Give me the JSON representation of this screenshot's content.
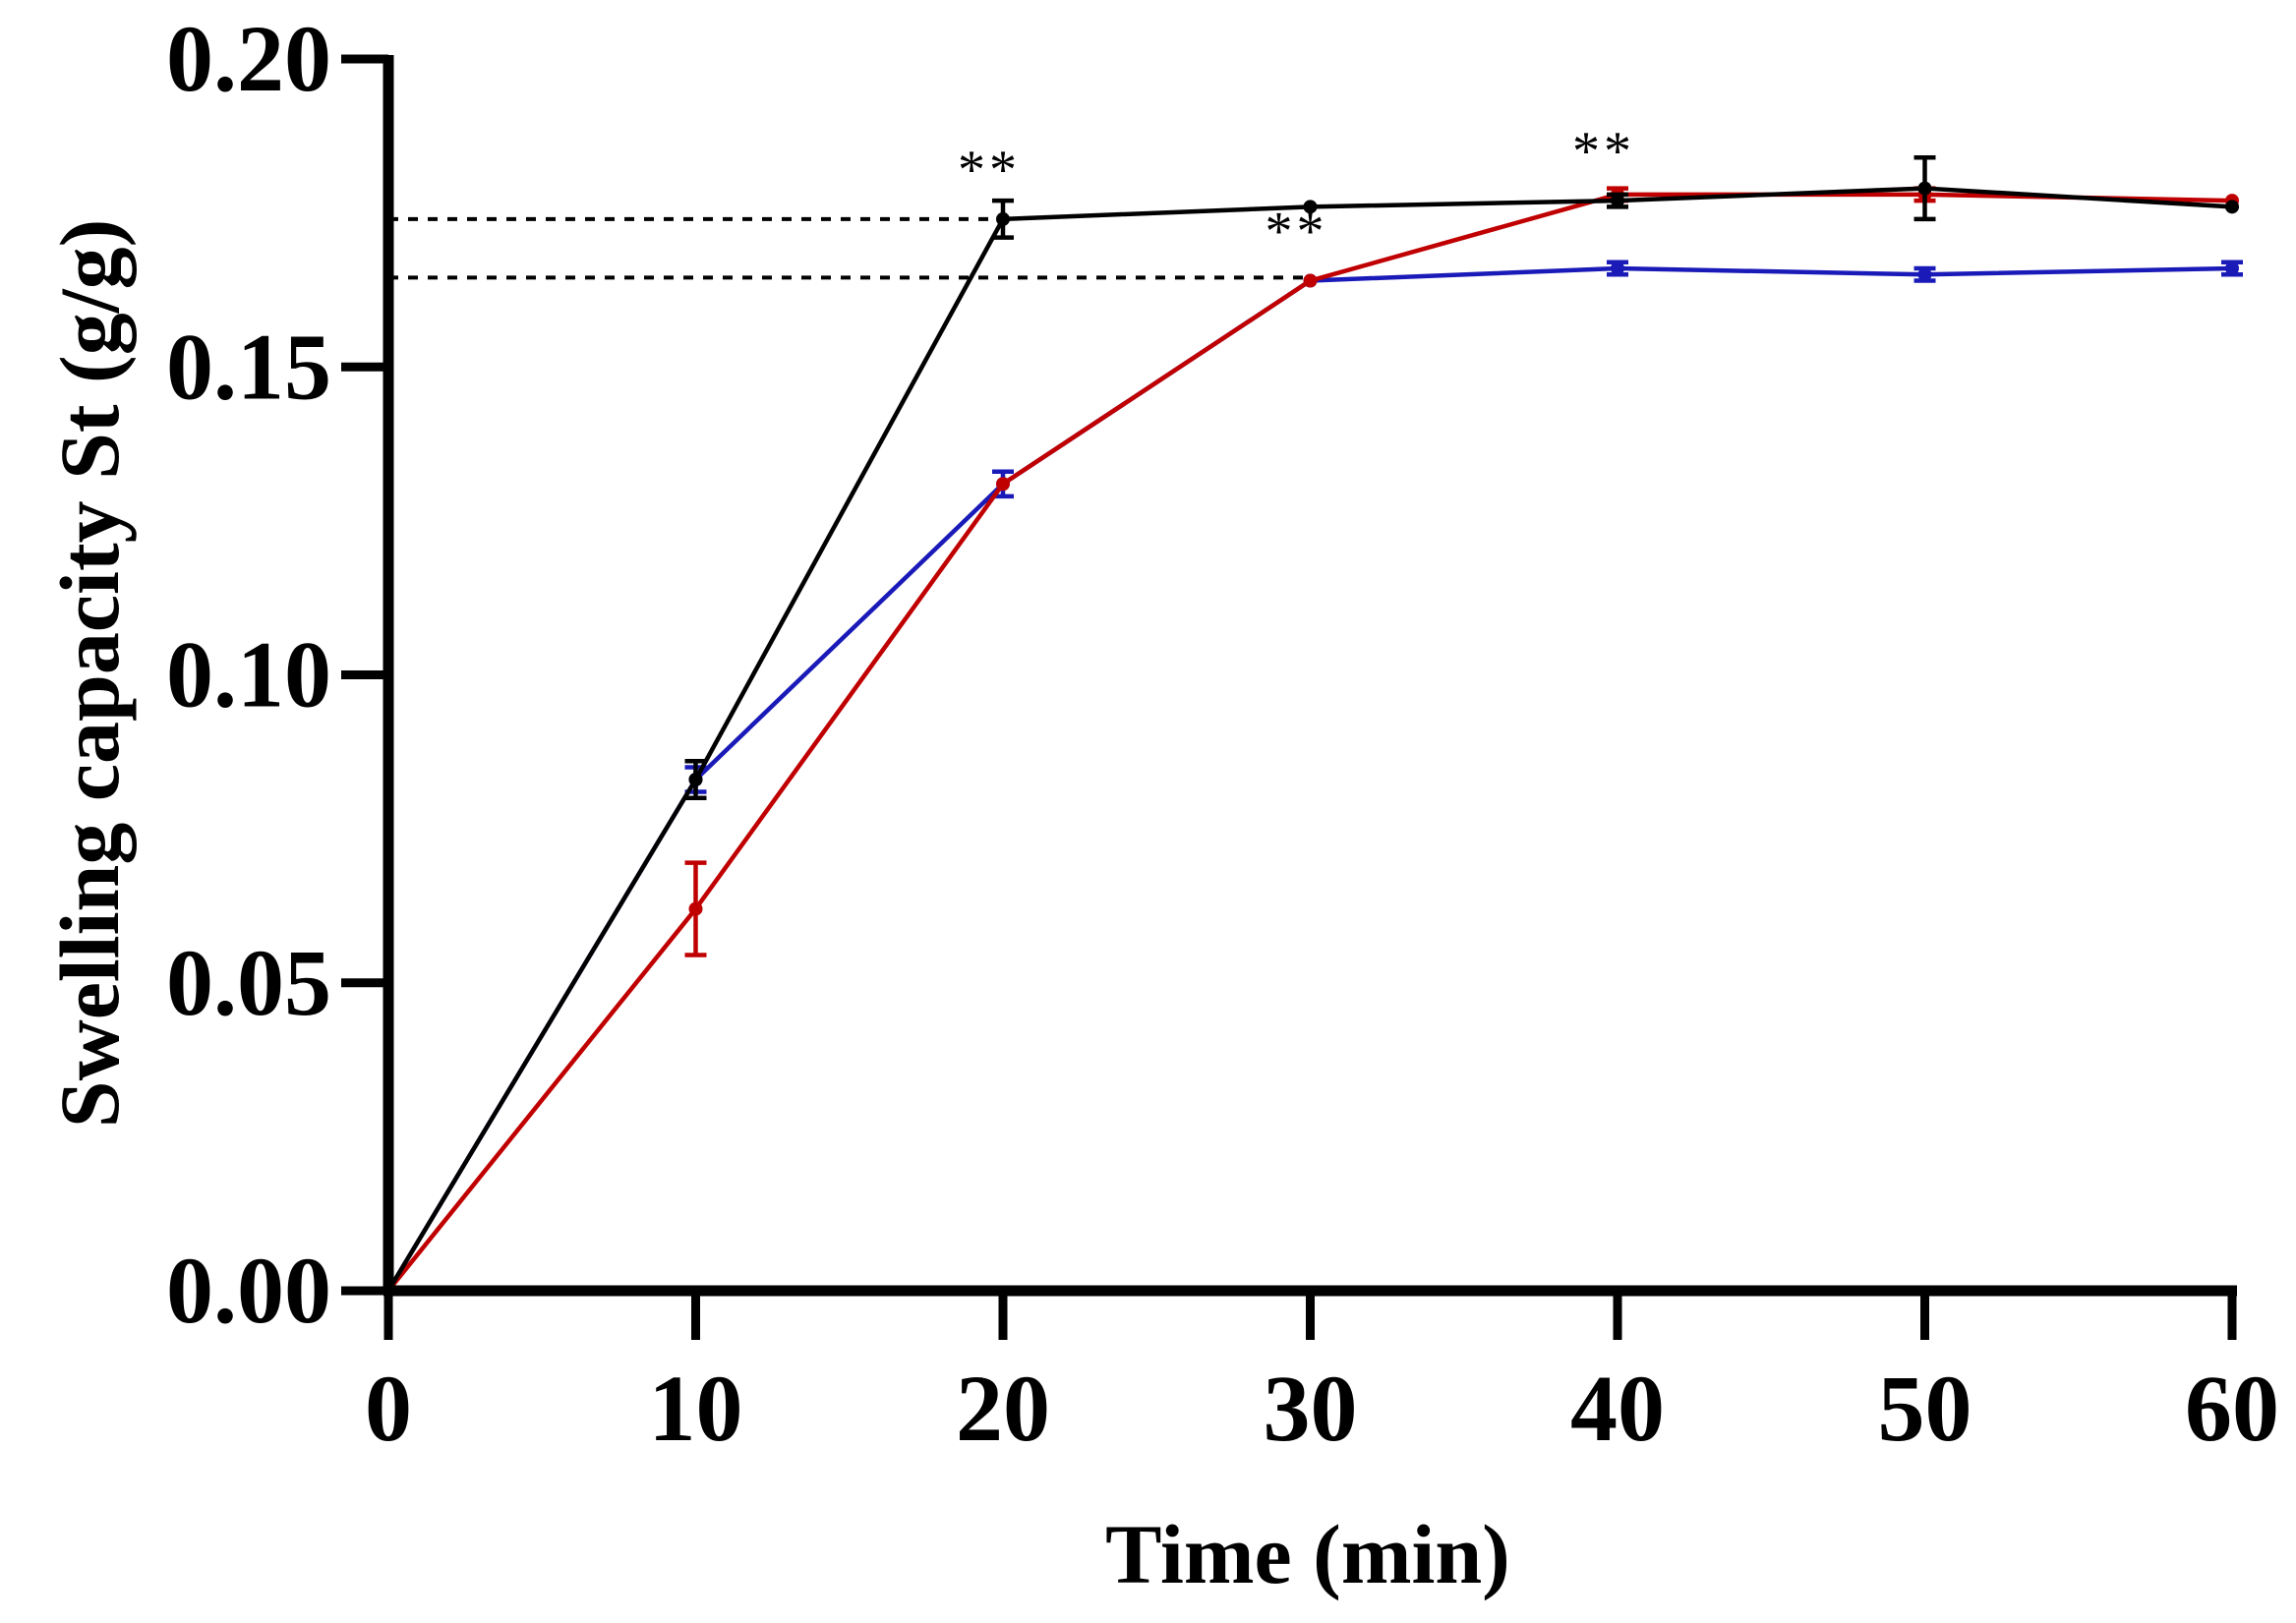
{
  "chart_data": {
    "type": "line",
    "title": "",
    "xlabel": "Time (min)",
    "ylabel": "Swelling capacity St (g/g)",
    "xlim": [
      0,
      60
    ],
    "ylim": [
      0,
      0.2
    ],
    "xticks": [
      0,
      10,
      20,
      30,
      40,
      50,
      60
    ],
    "xtick_labels": [
      "0",
      "10",
      "20",
      "30",
      "40",
      "50",
      "60"
    ],
    "yticks": [
      0,
      0.05,
      0.1,
      0.15,
      0.2
    ],
    "ytick_labels": [
      "0.00",
      "0.05",
      "0.10",
      "0.15",
      "0.20"
    ],
    "grid": false,
    "x": [
      0,
      10,
      20,
      30,
      40,
      50,
      60
    ],
    "series": [
      {
        "name": "blue series",
        "color": "#1a1ab8",
        "values": [
          0,
          0.083,
          0.131,
          0.164,
          0.166,
          0.165,
          0.166
        ],
        "errors": [
          0,
          0.002,
          0.002,
          0,
          0.001,
          0.001,
          0.001
        ]
      },
      {
        "name": "red series",
        "color": "#c00000",
        "values": [
          0,
          0.062,
          0.131,
          0.164,
          0.178,
          0.178,
          0.177
        ],
        "errors": [
          0,
          0.0075,
          0,
          0,
          0.001,
          0.001,
          0
        ]
      },
      {
        "name": "black series",
        "color": "#000000",
        "values": [
          0,
          0.083,
          0.174,
          0.176,
          0.177,
          0.179,
          0.176
        ],
        "errors": [
          0,
          0.003,
          0.003,
          0,
          0.001,
          0.005,
          0
        ]
      }
    ],
    "reference_lines": [
      {
        "y": 0.174,
        "x_end": 20,
        "style": "dotted",
        "color": "#000000"
      },
      {
        "y": 0.1645,
        "x_end": 30,
        "style": "dotted",
        "color": "#000000"
      }
    ],
    "annotations": [
      {
        "text": "**",
        "x": 20,
        "y": 0.174
      },
      {
        "text": "**",
        "x": 30,
        "y": 0.164
      },
      {
        "text": "**",
        "x": 40,
        "y": 0.177
      }
    ]
  }
}
